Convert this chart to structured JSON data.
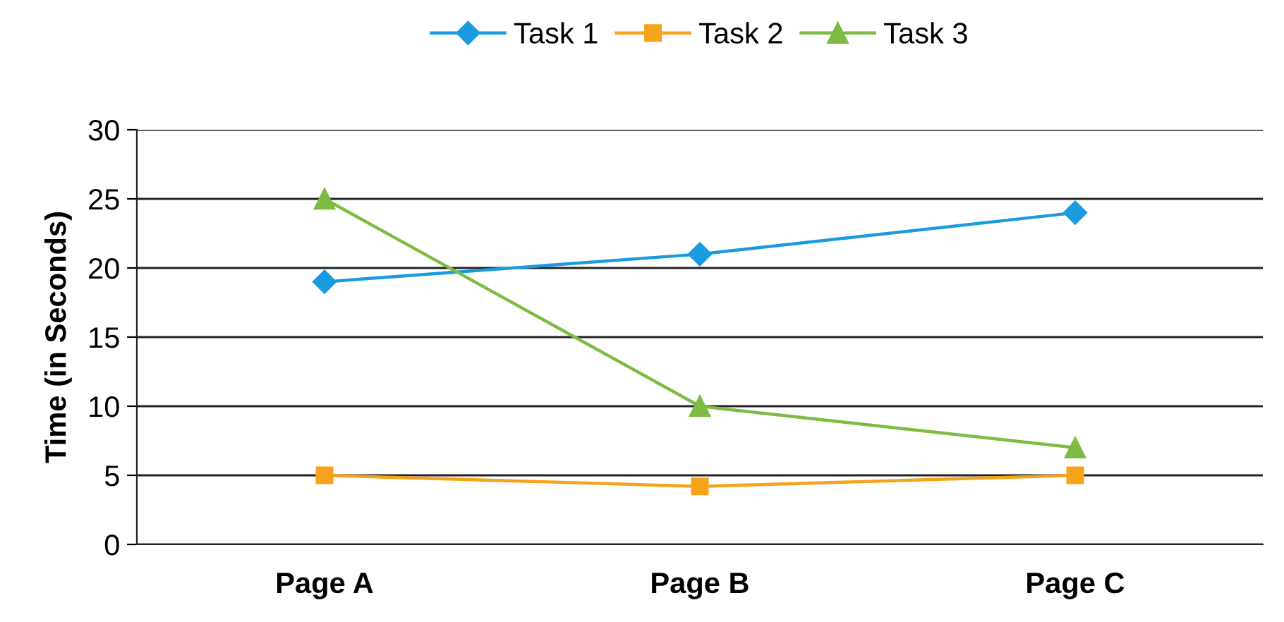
{
  "chart_data": {
    "type": "line",
    "ylabel": "Time (in Seconds)",
    "categories": [
      "Page A",
      "Page B",
      "Page C"
    ],
    "series": [
      {
        "name": "Task 1",
        "color": "#1a9be0",
        "marker": "diamond",
        "values": [
          19,
          21,
          24
        ]
      },
      {
        "name": "Task 2",
        "color": "#f7a21b",
        "marker": "square",
        "values": [
          5,
          4.2,
          5
        ]
      },
      {
        "name": "Task 3",
        "color": "#7dbb42",
        "marker": "triangle",
        "values": [
          25,
          10,
          7
        ]
      }
    ],
    "ylim": [
      0,
      30
    ],
    "yticks": [
      0,
      5,
      10,
      15,
      20,
      25,
      30
    ],
    "grid": "y",
    "legend": "top"
  }
}
